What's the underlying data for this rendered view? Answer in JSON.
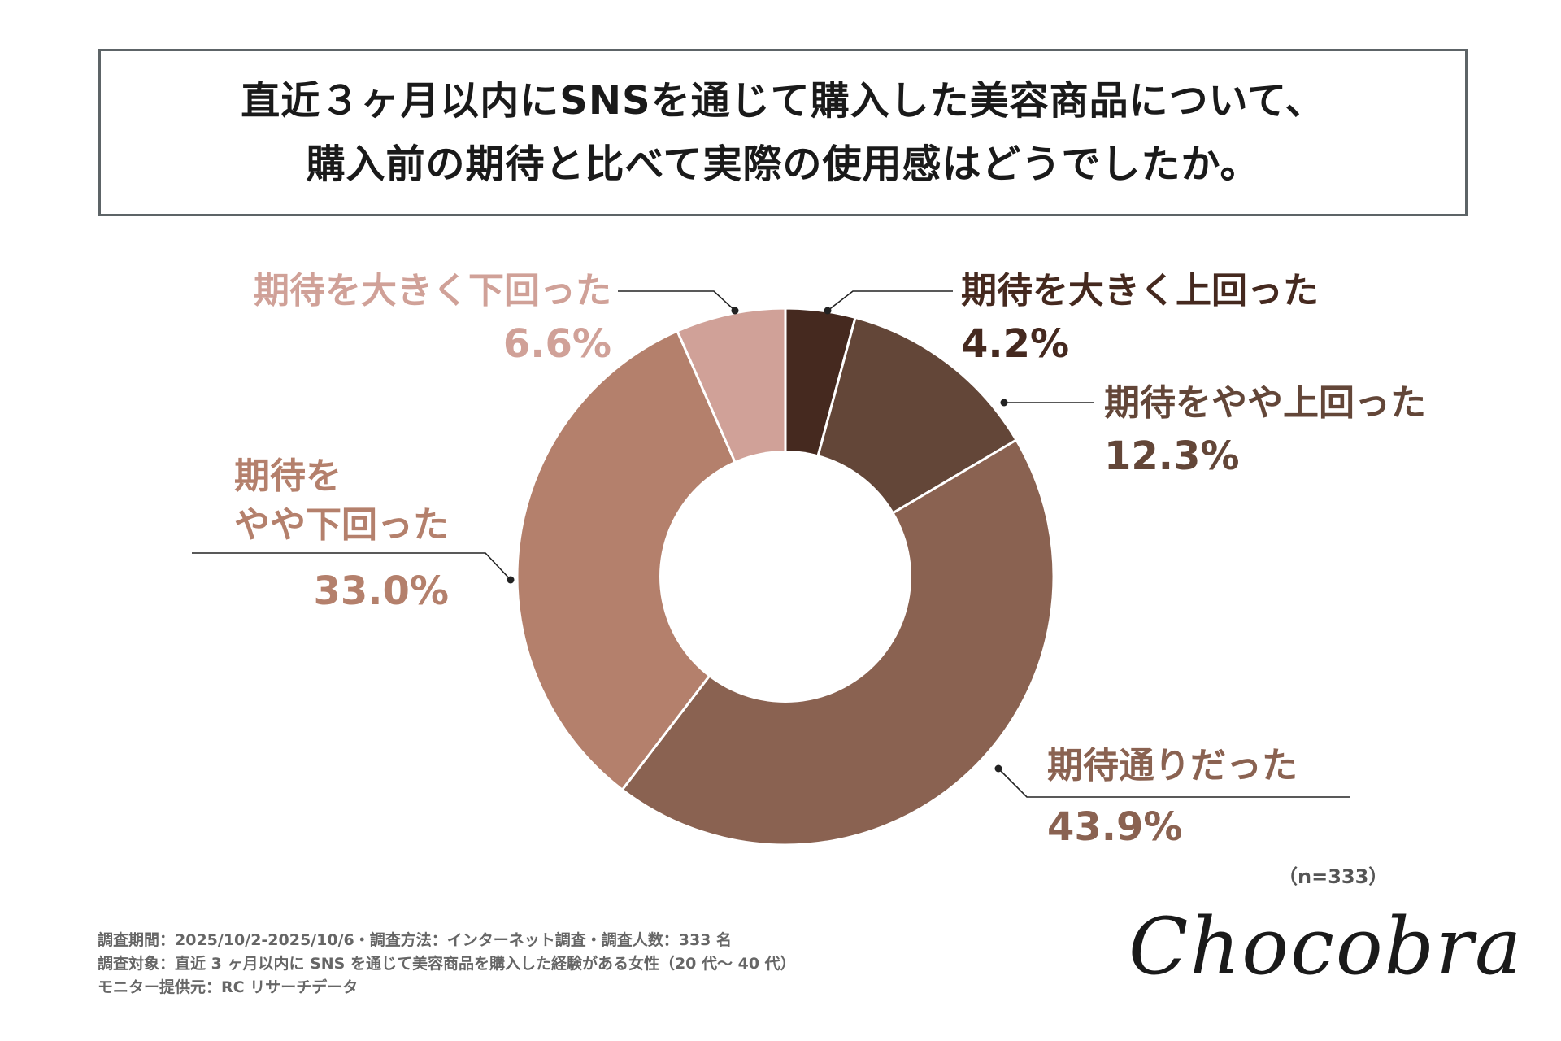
{
  "title": {
    "line1": "直近３ヶ月以内にSNSを通じて購入した美容商品について、",
    "line2": "購入前の期待と比べて実際の使用感はどうでしたか。"
  },
  "chart_data": {
    "type": "pie",
    "categories": [
      "期待を大きく上回った",
      "期待をやや上回った",
      "期待通りだった",
      "期待をやや下回った",
      "期待を大きく下回った"
    ],
    "values": [
      4.2,
      12.3,
      43.9,
      33.0,
      6.6
    ],
    "value_labels": [
      "4.2%",
      "12.3%",
      "43.9%",
      "33.0%",
      "6.6%"
    ],
    "colors": [
      "#45291f",
      "#634638",
      "#8a6251",
      "#b4806c",
      "#d0a198"
    ],
    "donut": true,
    "start": "top, clockwise"
  },
  "labels": {
    "much_above": {
      "name": "期待を大きく上回った",
      "pct": "4.2%"
    },
    "slightly_above": {
      "name": "期待をやや上回った",
      "pct": "12.3%"
    },
    "as_expected": {
      "name": "期待通りだった",
      "pct": "43.9%"
    },
    "slightly_below": {
      "name_line1": "期待を",
      "name_line2": "やや下回った",
      "pct": "33.0%"
    },
    "much_below": {
      "name": "期待を大きく下回った",
      "pct": "6.6%"
    }
  },
  "sample_note": "（n=333）",
  "footer": {
    "line1": "調査期間：2025/10/2-2025/10/6・調査方法：インターネット調査・調査人数：333 名",
    "line2": "調査対象：直近 3 ヶ月以内に SNS を通じて美容商品を購入した経験がある女性（20 代〜 40 代）",
    "line3": "モニター提供元：RC リサーチデータ"
  },
  "logo_text": "Chocobra"
}
